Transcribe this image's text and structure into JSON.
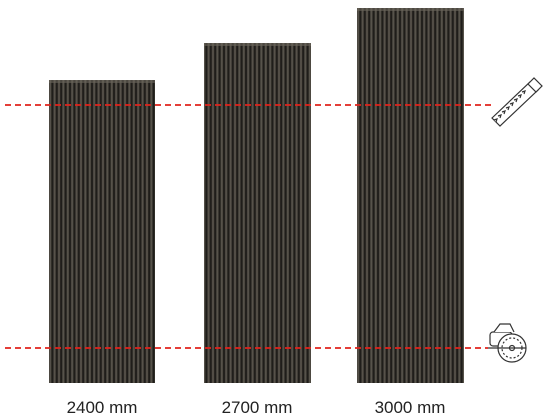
{
  "panels": [
    {
      "label": "2400 mm"
    },
    {
      "label": "2700 mm"
    },
    {
      "label": "3000 mm"
    }
  ]
}
